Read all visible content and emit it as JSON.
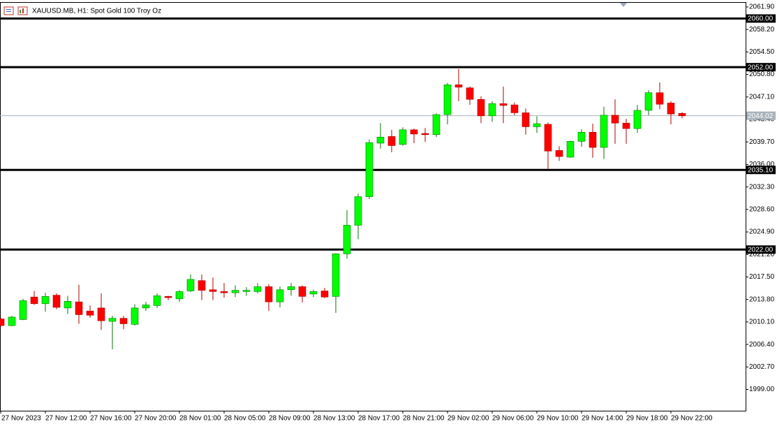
{
  "chart_data": {
    "type": "candlestick",
    "title": "XAUUSD.MB, H1:  Spot Gold 100 Troy Oz",
    "categories": [
      "27 Nov 2023",
      null,
      null,
      null,
      "27 Nov 12:00",
      null,
      null,
      null,
      "27 Nov 16:00",
      null,
      null,
      null,
      "27 Nov 20:00",
      null,
      null,
      null,
      "28 Nov 01:00",
      null,
      null,
      null,
      "28 Nov 05:00",
      null,
      null,
      null,
      "28 Nov 09:00",
      null,
      null,
      null,
      "28 Nov 13:00",
      null,
      null,
      null,
      "28 Nov 17:00",
      null,
      null,
      null,
      "28 Nov 21:00",
      null,
      null,
      null,
      "29 Nov 02:00",
      null,
      null,
      null,
      "29 Nov 06:00",
      null,
      null,
      null,
      "29 Nov 10:00",
      null,
      null,
      null,
      "29 Nov 14:00",
      null,
      null,
      null,
      "29 Nov 18:00",
      null,
      null,
      null,
      "29 Nov 22:00",
      null
    ],
    "open": [
      2010.6,
      2009.5,
      2010.5,
      2014.2,
      2013.1,
      2014.5,
      2012.4,
      2013.4,
      2011.9,
      2012.4,
      2010.2,
      2010.7,
      2009.7,
      2012.4,
      2012.8,
      2014.3,
      2013.9,
      2015.2,
      2016.9,
      2015.4,
      2015.1,
      2014.9,
      2015.1,
      2015.1,
      2015.9,
      2013.4,
      2015.4,
      2015.9,
      2014.7,
      2015.2,
      2014.3,
      2021.3,
      2026.0,
      2030.7,
      2039.5,
      2040.6,
      2039.3,
      2041.7,
      2041.1,
      2040.9,
      2044.2,
      2049.1,
      2048.6,
      2046.7,
      2044.0,
      2046.0,
      2045.8,
      2044.5,
      2042.2,
      2042.6,
      2038.3,
      2037.2,
      2039.8,
      2041.3,
      2038.8,
      2044.1,
      2042.8,
      2041.9,
      2044.9,
      2047.8,
      2046.1,
      2044.4
    ],
    "high": [
      2010.8,
      2011.1,
      2013.9,
      2015.2,
      2014.9,
      2014.8,
      2014.4,
      2016.2,
      2012.8,
      2014.8,
      2011.1,
      2011.1,
      2013.0,
      2013.4,
      2014.8,
      2014.4,
      2015.3,
      2017.9,
      2017.9,
      2017.4,
      2016.5,
      2016.1,
      2015.8,
      2016.5,
      2016.3,
      2015.9,
      2016.5,
      2016.1,
      2015.4,
      2015.7,
      2021.4,
      2028.5,
      2031.2,
      2040.1,
      2042.8,
      2041.7,
      2042.1,
      2041.9,
      2042.0,
      2044.4,
      2049.4,
      2051.7,
      2048.8,
      2047.2,
      2046.4,
      2048.8,
      2046.2,
      2045.2,
      2043.9,
      2042.9,
      2039.0,
      2039.9,
      2041.8,
      2042.7,
      2045.5,
      2046.7,
      2043.5,
      2045.8,
      2048.2,
      2049.5,
      2046.4,
      2044.6
    ],
    "low": [
      2009.3,
      2009.4,
      2010.4,
      2012.9,
      2011.8,
      2012.2,
      2011.4,
      2009.8,
      2010.8,
      2008.8,
      2005.6,
      2008.9,
      2009.5,
      2011.9,
      2012.4,
      2013.7,
      2013.4,
      2015.0,
      2013.7,
      2013.7,
      2014.1,
      2014.2,
      2014.4,
      2014.8,
      2011.9,
      2012.5,
      2014.4,
      2013.3,
      2014.2,
      2014.0,
      2011.6,
      2020.5,
      2023.7,
      2030.3,
      2038.6,
      2038.0,
      2039.1,
      2039.5,
      2039.7,
      2040.5,
      2042.6,
      2046.4,
      2045.8,
      2042.8,
      2043.0,
      2042.8,
      2044.1,
      2040.9,
      2041.2,
      2035.2,
      2036.6,
      2037.1,
      2038.9,
      2037.1,
      2036.9,
      2039.4,
      2039.4,
      2041.2,
      2044.1,
      2045.1,
      2042.6,
      2043.6
    ],
    "close": [
      2009.5,
      2010.9,
      2013.6,
      2013.1,
      2014.3,
      2012.5,
      2013.5,
      2011.3,
      2011.2,
      2010.3,
      2010.7,
      2009.8,
      2012.4,
      2012.9,
      2014.4,
      2014.1,
      2015.1,
      2017.1,
      2015.3,
      2015.1,
      2014.9,
      2015.3,
      2015.3,
      2015.9,
      2013.4,
      2015.4,
      2015.9,
      2014.3,
      2015.1,
      2014.2,
      2021.3,
      2026.0,
      2030.7,
      2039.6,
      2040.5,
      2039.1,
      2041.7,
      2041.0,
      2040.9,
      2044.2,
      2049.1,
      2048.7,
      2046.7,
      2044.0,
      2046.0,
      2045.7,
      2044.5,
      2042.2,
      2042.7,
      2038.2,
      2037.3,
      2039.8,
      2041.3,
      2038.8,
      2044.1,
      2042.8,
      2041.9,
      2044.9,
      2047.8,
      2045.9,
      2044.3,
      2044.0
    ],
    "up_color": "#00ff00",
    "down_color": "#ff0000",
    "ylim": [
      1995.5,
      2062.7
    ],
    "yticks": [
      {
        "value": 2061.9,
        "label": "2061.90"
      },
      {
        "value": 2058.2,
        "label": "2058.20"
      },
      {
        "value": 2054.5,
        "label": "2054.50"
      },
      {
        "value": 2050.8,
        "label": "2050.80"
      },
      {
        "value": 2047.1,
        "label": "2047.10"
      },
      {
        "value": 2043.4,
        "label": "2043.40"
      },
      {
        "value": 2039.7,
        "label": "2039.70"
      },
      {
        "value": 2036.0,
        "label": "2036.00"
      },
      {
        "value": 2032.3,
        "label": "2032.30"
      },
      {
        "value": 2028.6,
        "label": "2028.60"
      },
      {
        "value": 2024.9,
        "label": "2024.90"
      },
      {
        "value": 2021.2,
        "label": "2021.20"
      },
      {
        "value": 2017.5,
        "label": "2017.50"
      },
      {
        "value": 2013.8,
        "label": "2013.80"
      },
      {
        "value": 2010.1,
        "label": "2010.10"
      },
      {
        "value": 2006.4,
        "label": "2006.40"
      },
      {
        "value": 2002.7,
        "label": "2002.70"
      },
      {
        "value": 1999.0,
        "label": "1999.00"
      }
    ],
    "levels": [
      {
        "value": 2060,
        "label": "2060.00"
      },
      {
        "value": 2052,
        "label": "2052.00"
      },
      {
        "value": 2035.1,
        "label": "2035.10"
      },
      {
        "value": 2022,
        "label": "2022.00"
      }
    ],
    "level_color": "#000000",
    "price_line": {
      "value": 2044.02,
      "label": "2044.02"
    },
    "price_color": "#a9b3bc"
  }
}
